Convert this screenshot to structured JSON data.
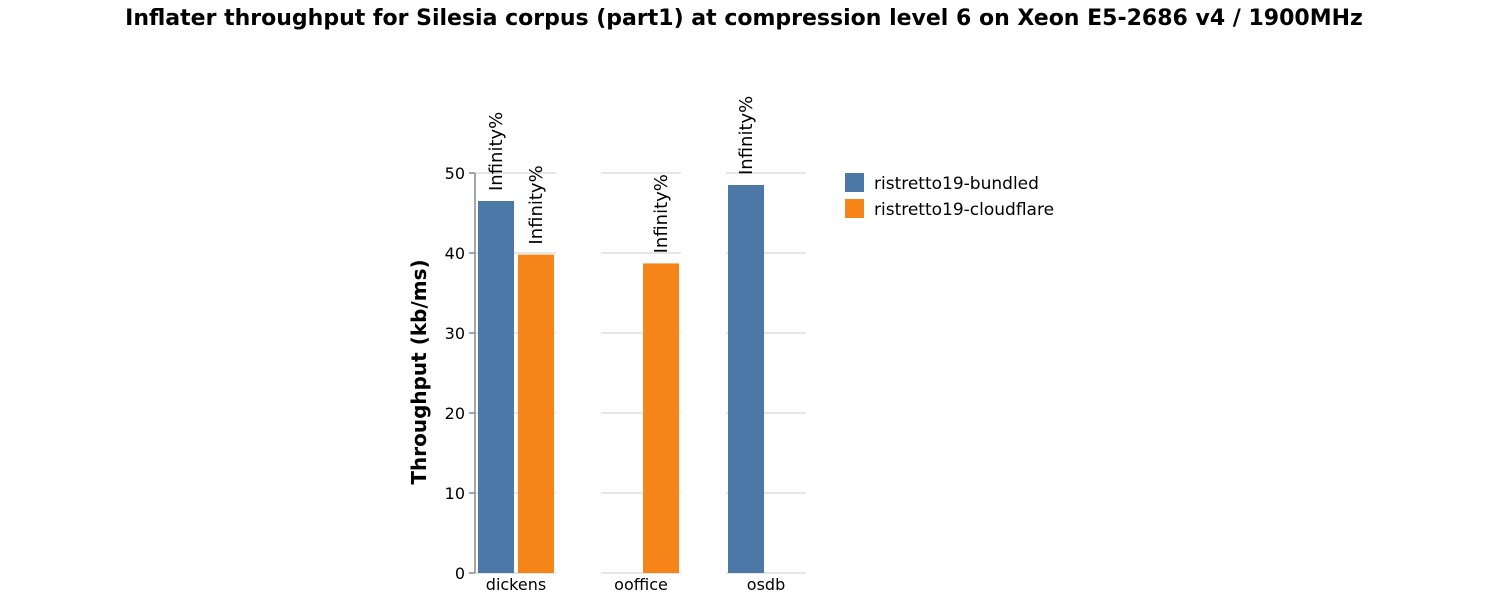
{
  "chart_data": {
    "type": "bar",
    "title": "Inflater throughput for Silesia corpus (part1) at compression level 6 on Xeon E5-2686 v4 / 1900MHz",
    "xlabel": "",
    "ylabel": "Throughput (kb/ms)",
    "ylim": [
      0,
      50
    ],
    "yticks": [
      0,
      10,
      20,
      30,
      40,
      50
    ],
    "grid": true,
    "legend_position": "right",
    "categories": [
      "dickens",
      "ooffice",
      "osdb"
    ],
    "series": [
      {
        "name": "ristretto19-bundled",
        "color": "#4c78a8",
        "values": [
          46.5,
          null,
          48.5
        ],
        "labels": [
          "Infinity%",
          null,
          "Infinity%"
        ]
      },
      {
        "name": "ristretto19-cloudflare",
        "color": "#f58518",
        "values": [
          39.8,
          38.7,
          null
        ],
        "labels": [
          "Infinity%",
          "Infinity%",
          null
        ]
      }
    ]
  }
}
